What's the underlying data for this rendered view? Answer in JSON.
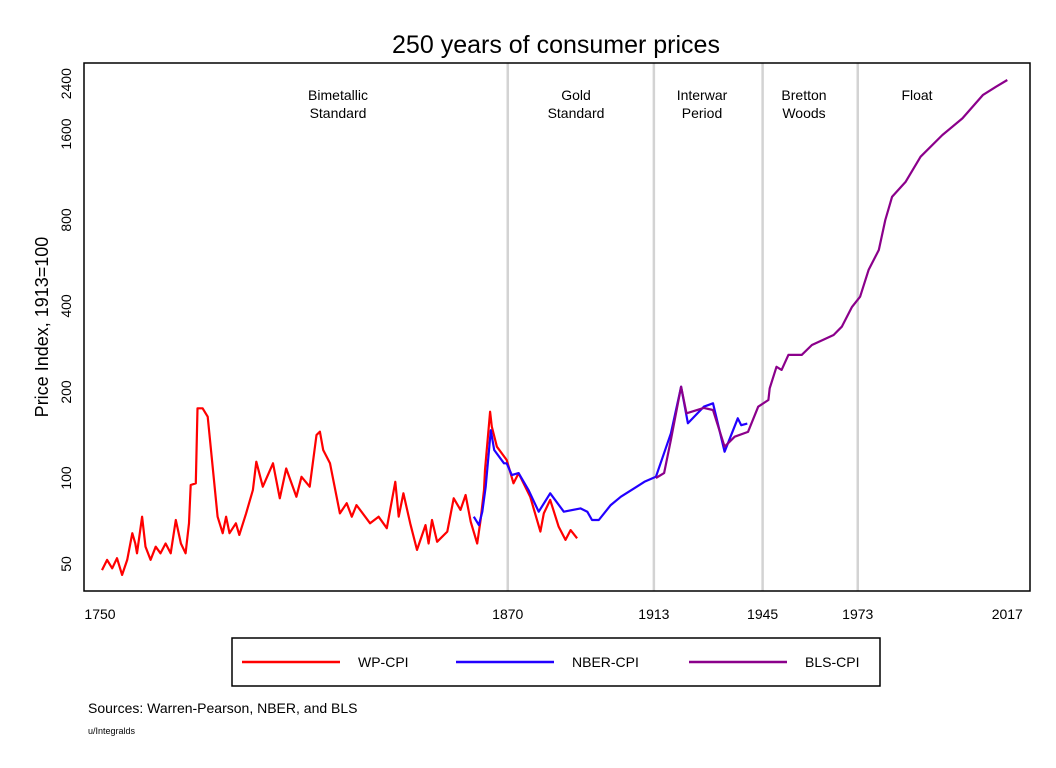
{
  "chart_data": {
    "type": "line",
    "title": "250 years of consumer prices",
    "xlabel": "",
    "ylabel": "Price Index, 1913=100",
    "y_scale": "log",
    "ylim": [
      44,
      2700
    ],
    "xlim": [
      1745,
      2024
    ],
    "grid": false,
    "x_ticks": [
      "1750",
      "1870",
      "1913",
      "1945",
      "1973",
      "2017"
    ],
    "x_tick_values": [
      1750,
      1870,
      1913,
      1945,
      1973,
      2017
    ],
    "y_ticks": [
      "50",
      "100",
      "200",
      "400",
      "800",
      "1600",
      "2400"
    ],
    "y_tick_values": [
      50,
      100,
      200,
      400,
      800,
      1600,
      2400
    ],
    "period_boundaries": [
      1870,
      1913,
      1945,
      1973
    ],
    "periods": [
      {
        "line1": "Bimetallic",
        "line2": "Standard"
      },
      {
        "line1": "Gold",
        "line2": "Standard"
      },
      {
        "line1": "Interwar",
        "line2": "Period"
      },
      {
        "line1": "Bretton",
        "line2": "Woods"
      },
      {
        "line1": "Float",
        "line2": ""
      }
    ],
    "legend_placement": "bottom",
    "series": [
      {
        "name": "WP-CPI",
        "color": "#ff0000",
        "points": [
          [
            1750.6,
            47.6
          ],
          [
            1752.1,
            51.7
          ],
          [
            1753.6,
            48.3
          ],
          [
            1755,
            52.4
          ],
          [
            1756.5,
            45.8
          ],
          [
            1758,
            51.7
          ],
          [
            1759.5,
            64.1
          ],
          [
            1760.4,
            59
          ],
          [
            1760.9,
            54.5
          ],
          [
            1762.4,
            73.2
          ],
          [
            1763.4,
            57.5
          ],
          [
            1764.9,
            51.7
          ],
          [
            1766.4,
            57.5
          ],
          [
            1767.8,
            54.5
          ],
          [
            1769.3,
            59
          ],
          [
            1770.8,
            54.5
          ],
          [
            1772.3,
            71.3
          ],
          [
            1773.8,
            59
          ],
          [
            1775.2,
            54.5
          ],
          [
            1776.2,
            69.4
          ],
          [
            1776.7,
            94.5
          ],
          [
            1778.2,
            95.8
          ],
          [
            1778.7,
            175.4
          ],
          [
            1780.2,
            175.4
          ],
          [
            1781.7,
            163.9
          ],
          [
            1784.6,
            73.2
          ],
          [
            1786.1,
            64.1
          ],
          [
            1787.1,
            73.2
          ],
          [
            1788.1,
            64.1
          ],
          [
            1790,
            69.4
          ],
          [
            1791,
            63.2
          ],
          [
            1793,
            75.2
          ],
          [
            1795,
            90.8
          ],
          [
            1796,
            114
          ],
          [
            1797.9,
            93.2
          ],
          [
            1800.9,
            112.6
          ],
          [
            1802.9,
            84.9
          ],
          [
            1804.8,
            108
          ],
          [
            1807.8,
            86
          ],
          [
            1809.3,
            101
          ],
          [
            1811.7,
            93.2
          ],
          [
            1813.7,
            141.4
          ],
          [
            1814.7,
            145.2
          ],
          [
            1815.7,
            125.3
          ],
          [
            1817.7,
            112.6
          ],
          [
            1820.6,
            75.2
          ],
          [
            1822.6,
            81.6
          ],
          [
            1824.1,
            73.2
          ],
          [
            1825.5,
            80.4
          ],
          [
            1829.5,
            69.4
          ],
          [
            1832,
            73.2
          ],
          [
            1834.4,
            66.7
          ],
          [
            1836.9,
            97
          ],
          [
            1837.9,
            73.2
          ],
          [
            1839.3,
            88.4
          ],
          [
            1841.3,
            69.4
          ],
          [
            1843.3,
            56
          ],
          [
            1845.8,
            68.4
          ],
          [
            1846.7,
            59
          ],
          [
            1847.7,
            71.3
          ],
          [
            1849.2,
            59.8
          ],
          [
            1852.2,
            64.9
          ],
          [
            1854.1,
            84.9
          ],
          [
            1856.1,
            77.3
          ],
          [
            1857.6,
            87.2
          ],
          [
            1859.1,
            70.3
          ],
          [
            1861,
            59
          ],
          [
            1862,
            71.3
          ],
          [
            1863,
            90.8
          ],
          [
            1863.3,
            106.7
          ],
          [
            1864.8,
            170.6
          ],
          [
            1865.3,
            151.3
          ],
          [
            1866.8,
            128.7
          ],
          [
            1869.7,
            115.6
          ],
          [
            1871.7,
            95.8
          ],
          [
            1873.2,
            103.9
          ],
          [
            1876.6,
            86
          ],
          [
            1879.6,
            64.9
          ],
          [
            1880.6,
            75.2
          ],
          [
            1882.5,
            83.8
          ],
          [
            1885,
            67.5
          ],
          [
            1887,
            60.7
          ],
          [
            1888.5,
            65.7
          ],
          [
            1890.4,
            61.5
          ]
        ]
      },
      {
        "name": "NBER-CPI",
        "color": "#2200ff",
        "points": [
          [
            1860,
            73.2
          ],
          [
            1861.5,
            68.4
          ],
          [
            1862.5,
            76.2
          ],
          [
            1863.5,
            93.2
          ],
          [
            1865,
            147
          ],
          [
            1866,
            125.3
          ],
          [
            1868.9,
            112.6
          ],
          [
            1869.7,
            112.6
          ],
          [
            1871.2,
            102.4
          ],
          [
            1873.2,
            104
          ],
          [
            1876.1,
            90.8
          ],
          [
            1879.1,
            76.2
          ],
          [
            1882.5,
            88.4
          ],
          [
            1886.5,
            76.2
          ],
          [
            1891.4,
            78.3
          ],
          [
            1893.4,
            76.2
          ],
          [
            1894.8,
            71.3
          ],
          [
            1896.8,
            71.3
          ],
          [
            1900.3,
            80.4
          ],
          [
            1903.3,
            86
          ],
          [
            1907.2,
            92
          ],
          [
            1910.2,
            97
          ],
          [
            1913.6,
            101
          ],
          [
            1918,
            143.4
          ],
          [
            1921,
            208.7
          ],
          [
            1923,
            155.4
          ],
          [
            1927.7,
            177.7
          ],
          [
            1930.4,
            182.6
          ],
          [
            1933.8,
            123.6
          ],
          [
            1937.7,
            161.8
          ],
          [
            1938.7,
            153
          ],
          [
            1940.5,
            155
          ]
        ]
      },
      {
        "name": "BLS-CPI",
        "color": "#8b008b",
        "points": [
          [
            1913.6,
            100
          ],
          [
            1916,
            104
          ],
          [
            1918,
            136
          ],
          [
            1921,
            208.7
          ],
          [
            1922.6,
            168.4
          ],
          [
            1927.7,
            176
          ],
          [
            1930.4,
            173
          ],
          [
            1933.8,
            128.7
          ],
          [
            1936.8,
            139.5
          ],
          [
            1940.7,
            145
          ],
          [
            1943.7,
            177.7
          ],
          [
            1946.7,
            187.5
          ],
          [
            1947.1,
            206
          ],
          [
            1949.1,
            245
          ],
          [
            1950.6,
            239
          ],
          [
            1952.6,
            269.6
          ],
          [
            1956.5,
            269.6
          ],
          [
            1959.5,
            292
          ],
          [
            1965.9,
            316.6
          ],
          [
            1968.3,
            338.6
          ],
          [
            1971.3,
            397
          ],
          [
            1973.7,
            431
          ],
          [
            1976.2,
            535
          ],
          [
            1979.2,
            628
          ],
          [
            1981.1,
            800
          ],
          [
            1983.1,
            965
          ],
          [
            1987.1,
            1089
          ],
          [
            1991.5,
            1332
          ],
          [
            1997.9,
            1587
          ],
          [
            2003.8,
            1815
          ],
          [
            2009.8,
            2190
          ],
          [
            2013.7,
            2342
          ],
          [
            2017,
            2472
          ]
        ]
      }
    ]
  },
  "footer": {
    "sources": "Sources: Warren-Pearson, NBER, and BLS",
    "credit": "u/Integralds"
  }
}
